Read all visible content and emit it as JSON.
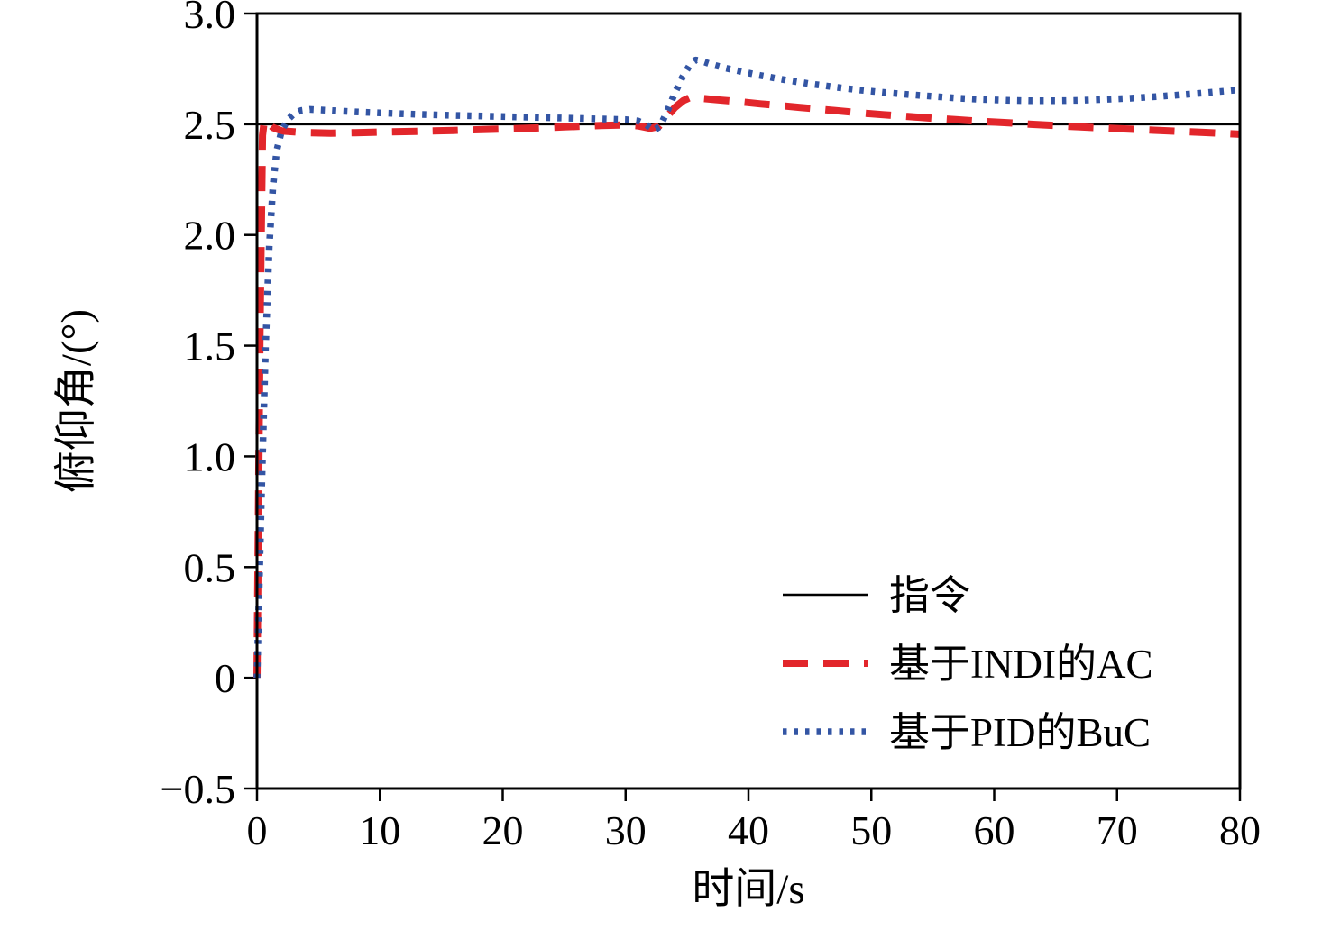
{
  "figure": {
    "background_color": "#ffffff",
    "frame_color": "#000000"
  },
  "chart_data": {
    "type": "line",
    "title": "",
    "xlabel": "时间/s",
    "ylabel": "俯仰角/(°)",
    "xlim": [
      0,
      80
    ],
    "ylim": [
      -0.5,
      3.0
    ],
    "xticks": [
      0,
      10,
      20,
      30,
      40,
      50,
      60,
      70,
      80
    ],
    "xtick_labels": [
      "0",
      "10",
      "20",
      "30",
      "40",
      "50",
      "60",
      "70",
      "80"
    ],
    "yticks": [
      -0.5,
      0,
      0.5,
      1.0,
      1.5,
      2.0,
      2.5,
      3.0
    ],
    "ytick_labels": [
      "−0.5",
      "0",
      "0.5",
      "1.0",
      "1.5",
      "2.0",
      "2.5",
      "3.0"
    ],
    "grid": false,
    "legend_position": "inside-lower-right",
    "series": [
      {
        "name": "指令",
        "color": "#000000",
        "style": "solid",
        "width": 2.5,
        "points": [
          [
            0,
            2.5
          ],
          [
            80,
            2.5
          ]
        ]
      },
      {
        "name": "基于INDI的AC",
        "color": "#e2262b",
        "style": "dashed",
        "width": 8,
        "points": [
          [
            0,
            0
          ],
          [
            0.25,
            1.6
          ],
          [
            0.45,
            2.45
          ],
          [
            0.6,
            2.52
          ],
          [
            0.9,
            2.505
          ],
          [
            1.3,
            2.485
          ],
          [
            2,
            2.47
          ],
          [
            4,
            2.462
          ],
          [
            6,
            2.46
          ],
          [
            8,
            2.462
          ],
          [
            10,
            2.465
          ],
          [
            13,
            2.468
          ],
          [
            16,
            2.472
          ],
          [
            19,
            2.477
          ],
          [
            22,
            2.482
          ],
          [
            25,
            2.488
          ],
          [
            28,
            2.494
          ],
          [
            30,
            2.497
          ],
          [
            31,
            2.493
          ],
          [
            32,
            2.482
          ],
          [
            32.7,
            2.49
          ],
          [
            33.3,
            2.53
          ],
          [
            34,
            2.575
          ],
          [
            34.7,
            2.607
          ],
          [
            35.3,
            2.622
          ],
          [
            36,
            2.618
          ],
          [
            37.5,
            2.61
          ],
          [
            39,
            2.603
          ],
          [
            41,
            2.592
          ],
          [
            43,
            2.582
          ],
          [
            45,
            2.572
          ],
          [
            47,
            2.562
          ],
          [
            49,
            2.552
          ],
          [
            51,
            2.543
          ],
          [
            53,
            2.535
          ],
          [
            55,
            2.527
          ],
          [
            57,
            2.52
          ],
          [
            59,
            2.513
          ],
          [
            61,
            2.507
          ],
          [
            63,
            2.5
          ],
          [
            65,
            2.494
          ],
          [
            67,
            2.488
          ],
          [
            69,
            2.483
          ],
          [
            71,
            2.478
          ],
          [
            73,
            2.473
          ],
          [
            75,
            2.468
          ],
          [
            77,
            2.463
          ],
          [
            79,
            2.458
          ],
          [
            80,
            2.455
          ]
        ]
      },
      {
        "name": "基于PID的BuC",
        "color": "#3355a4",
        "style": "dotted",
        "width": 7.5,
        "points": [
          [
            0,
            0
          ],
          [
            0.35,
            0.8
          ],
          [
            0.7,
            1.5
          ],
          [
            1.0,
            1.95
          ],
          [
            1.3,
            2.22
          ],
          [
            1.6,
            2.38
          ],
          [
            2.0,
            2.47
          ],
          [
            2.5,
            2.52
          ],
          [
            3.0,
            2.548
          ],
          [
            3.6,
            2.562
          ],
          [
            4.3,
            2.567
          ],
          [
            5,
            2.565
          ],
          [
            6,
            2.562
          ],
          [
            8,
            2.556
          ],
          [
            10,
            2.551
          ],
          [
            13,
            2.545
          ],
          [
            16,
            2.54
          ],
          [
            19,
            2.536
          ],
          [
            22,
            2.532
          ],
          [
            25,
            2.528
          ],
          [
            28,
            2.524
          ],
          [
            30,
            2.521
          ],
          [
            31,
            2.515
          ],
          [
            31.7,
            2.497
          ],
          [
            32.3,
            2.473
          ],
          [
            32.8,
            2.49
          ],
          [
            33.4,
            2.56
          ],
          [
            34,
            2.64
          ],
          [
            34.6,
            2.71
          ],
          [
            35.2,
            2.765
          ],
          [
            35.7,
            2.79
          ],
          [
            36.2,
            2.785
          ],
          [
            37,
            2.77
          ],
          [
            38,
            2.755
          ],
          [
            39.5,
            2.737
          ],
          [
            41,
            2.72
          ],
          [
            43,
            2.7
          ],
          [
            45,
            2.683
          ],
          [
            47,
            2.668
          ],
          [
            49,
            2.655
          ],
          [
            51,
            2.644
          ],
          [
            53,
            2.634
          ],
          [
            55,
            2.626
          ],
          [
            57,
            2.618
          ],
          [
            59,
            2.612
          ],
          [
            61,
            2.608
          ],
          [
            63,
            2.606
          ],
          [
            65,
            2.606
          ],
          [
            67,
            2.608
          ],
          [
            69,
            2.612
          ],
          [
            71,
            2.617
          ],
          [
            73,
            2.624
          ],
          [
            75,
            2.632
          ],
          [
            77,
            2.641
          ],
          [
            79,
            2.651
          ],
          [
            80,
            2.656
          ]
        ]
      }
    ]
  }
}
